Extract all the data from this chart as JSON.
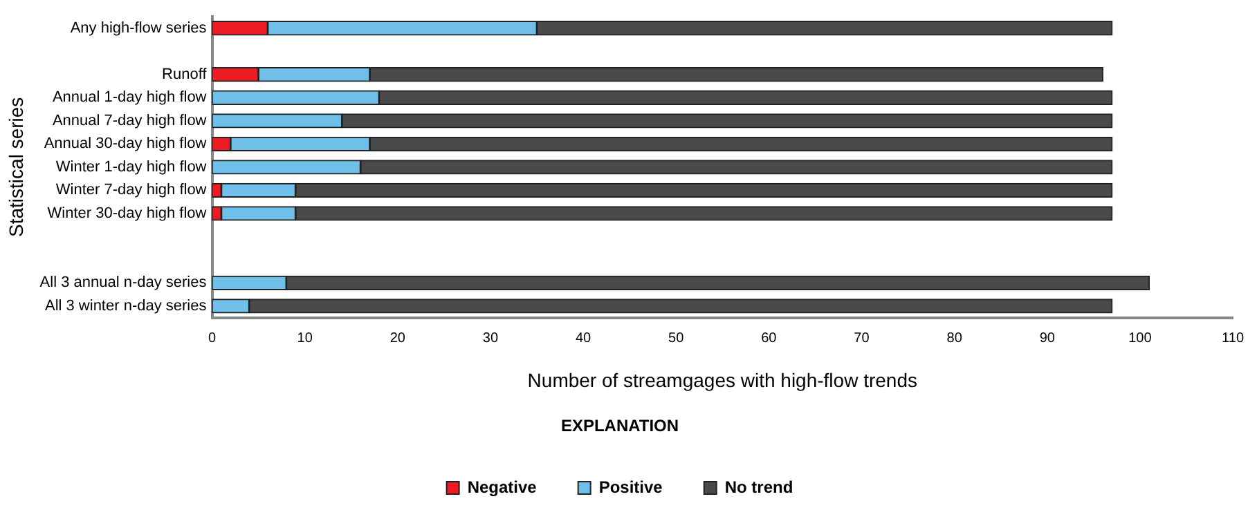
{
  "chart_data": {
    "type": "bar",
    "orientation": "horizontal",
    "stacked": true,
    "categories": [
      "Any high-flow series",
      null,
      "Runoff",
      "Annual 1-day high flow",
      "Annual 7-day high flow",
      "Annual 30-day high flow",
      "Winter 1-day high flow",
      "Winter 7-day high flow",
      "Winter 30-day high flow",
      null,
      null,
      "All 3 annual n-day series",
      "All 3 winter n-day series"
    ],
    "series": [
      {
        "name": "Negative",
        "color": "#ed1c24",
        "values": [
          6,
          null,
          5,
          0,
          0,
          2,
          0,
          1,
          1,
          null,
          null,
          0,
          0
        ]
      },
      {
        "name": "Positive",
        "color": "#6fbfe8",
        "values": [
          29,
          null,
          12,
          18,
          14,
          15,
          16,
          8,
          8,
          null,
          null,
          8,
          4
        ]
      },
      {
        "name": "No trend",
        "color": "#4a4a4c",
        "values": [
          62,
          null,
          79,
          79,
          83,
          80,
          81,
          88,
          88,
          null,
          null,
          93,
          93
        ]
      }
    ],
    "xlim": [
      0,
      110
    ],
    "xticks": [
      0,
      10,
      20,
      30,
      40,
      50,
      60,
      70,
      80,
      90,
      100,
      110
    ],
    "xlabel": "Number of streamgages with high-flow trends",
    "ylabel": "Statistical series",
    "legend_title": "EXPLANATION",
    "legend": "bottom",
    "grid": false
  }
}
